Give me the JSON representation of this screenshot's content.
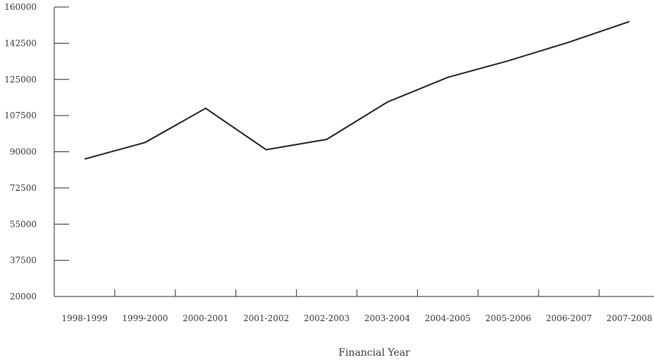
{
  "chart_data": {
    "type": "line",
    "xlabel": "Financial Year",
    "ylabel": "",
    "categories": [
      "1998-1999",
      "1999-2000",
      "2000-2001",
      "2001-2002",
      "2002-2003",
      "2003-2004",
      "2004-2005",
      "2005-2006",
      "2006-2007",
      "2007-2008"
    ],
    "series": [
      {
        "values": [
          86500,
          94500,
          111000,
          91000,
          96000,
          114000,
          126000,
          134000,
          143000,
          153000
        ]
      }
    ],
    "ylim": [
      20000,
      160000
    ],
    "yticks": [
      20000,
      37500,
      55000,
      72500,
      90000,
      107500,
      125000,
      142500,
      160000
    ],
    "grid": false,
    "legend": "none",
    "colors": {
      "line": "#1a1a1a",
      "axis": "#222222",
      "text": "#333333"
    }
  }
}
